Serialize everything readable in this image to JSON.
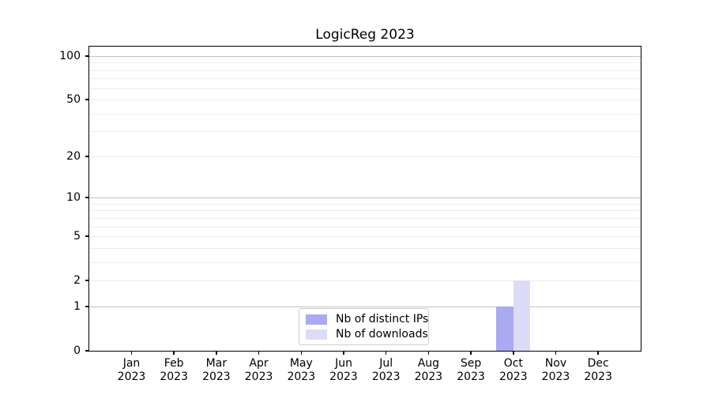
{
  "chart_data": {
    "type": "bar",
    "title": "LogicReg 2023",
    "categories": [
      "Jan",
      "Feb",
      "Mar",
      "Apr",
      "May",
      "Jun",
      "Jul",
      "Aug",
      "Sep",
      "Oct",
      "Nov",
      "Dec"
    ],
    "x_year_label": "2023",
    "series": [
      {
        "name": "Nb of distinct IPs",
        "color": "#aaaaf2",
        "values": [
          0,
          0,
          0,
          0,
          0,
          0,
          0,
          0,
          0,
          1,
          0,
          0
        ]
      },
      {
        "name": "Nb of downloads",
        "color": "#dcdcf8",
        "values": [
          0,
          0,
          0,
          0,
          0,
          0,
          0,
          0,
          0,
          2,
          0,
          0
        ]
      }
    ],
    "y_axis": {
      "scale": "log1p",
      "tick_labels": [
        "0",
        "1",
        "2",
        "5",
        "10",
        "20",
        "50",
        "100"
      ],
      "tick_values": [
        0,
        1,
        2,
        5,
        10,
        20,
        50,
        100
      ],
      "major_gridlines": [
        1,
        10,
        100
      ],
      "minor_gridlines": [
        2,
        3,
        4,
        5,
        6,
        7,
        8,
        9,
        20,
        30,
        40,
        50,
        60,
        70,
        80,
        90
      ],
      "ylim": [
        0,
        116
      ]
    },
    "legend": {
      "location": "lower center"
    },
    "style": {
      "major_grid_color": "#c4c4c4",
      "minor_grid_color": "#ececec",
      "spine_color": "#000000",
      "background": "#ffffff"
    }
  }
}
